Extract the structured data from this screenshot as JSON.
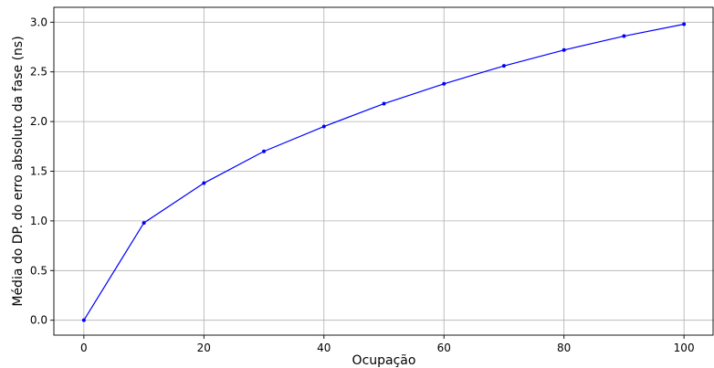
{
  "chart_data": {
    "type": "line",
    "title": "",
    "xlabel": "Ocupação",
    "ylabel": "Média do DP. do erro absoluto da fase (ns)",
    "xlim": [
      -5,
      105
    ],
    "ylim": [
      -0.15,
      3.15
    ],
    "xticks": [
      0,
      20,
      40,
      60,
      80,
      100
    ],
    "yticks": [
      0.0,
      0.5,
      1.0,
      1.5,
      2.0,
      2.5,
      3.0
    ],
    "xtick_labels": [
      "0",
      "20",
      "40",
      "60",
      "80",
      "100"
    ],
    "ytick_labels": [
      "0.0",
      "0.5",
      "1.0",
      "1.5",
      "2.0",
      "2.5",
      "3.0"
    ],
    "grid": true,
    "series": [
      {
        "color": "#0000ff",
        "marker": "dot",
        "x": [
          0,
          10,
          20,
          30,
          40,
          50,
          60,
          70,
          80,
          90,
          100
        ],
        "y": [
          0.0,
          0.98,
          1.38,
          1.7,
          1.95,
          2.18,
          2.38,
          2.56,
          2.72,
          2.86,
          2.98
        ]
      }
    ]
  }
}
